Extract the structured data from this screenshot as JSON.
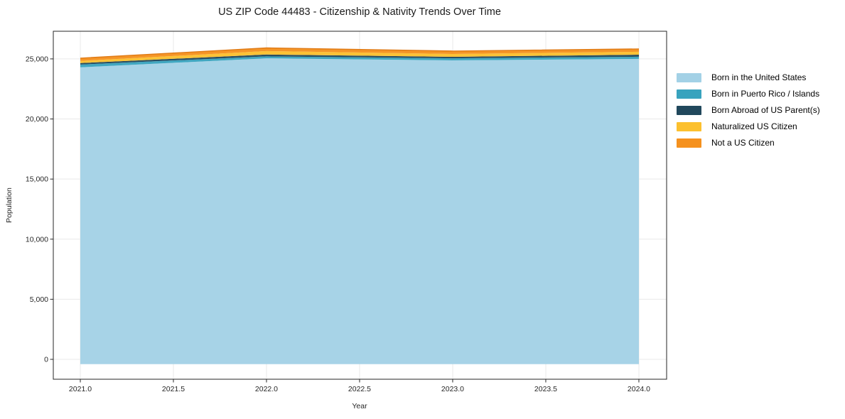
{
  "chart_data": {
    "type": "area",
    "stacked": true,
    "title": "US ZIP Code 44483 - Citizenship & Nativity Trends Over Time",
    "xlabel": "Year",
    "ylabel": "Population",
    "x": [
      2021,
      2022,
      2023,
      2024
    ],
    "series": [
      {
        "name": "Born in the United States",
        "color": "#A3D1E6",
        "values": [
          24300,
          25050,
          24880,
          25000
        ]
      },
      {
        "name": "Born in Puerto Rico / Islands",
        "color": "#38A3BE",
        "values": [
          230,
          160,
          170,
          180
        ]
      },
      {
        "name": "Born Abroad of US Parent(s)",
        "color": "#21485C",
        "values": [
          120,
          150,
          120,
          170
        ]
      },
      {
        "name": "Naturalized US Citizen",
        "color": "#FCC02E",
        "values": [
          180,
          290,
          240,
          240
        ]
      },
      {
        "name": "Not a US Citizen",
        "color": "#F5911E",
        "values": [
          230,
          260,
          240,
          240
        ]
      }
    ],
    "xlim": [
      2020.855,
      2024.149
    ],
    "ylim": [
      -1655,
      27300
    ],
    "xticks": {
      "values": [
        2021.0,
        2021.5,
        2022.0,
        2022.5,
        2023.0,
        2023.5,
        2024.0
      ],
      "labels": [
        "2021.0",
        "2021.5",
        "2022.0",
        "2022.5",
        "2023.0",
        "2023.5",
        "2024.0"
      ]
    },
    "yticks": {
      "values": [
        0,
        5000,
        10000,
        15000,
        20000,
        25000
      ],
      "labels": [
        "0",
        "5,000",
        "10,000",
        "15,000",
        "20,000",
        "25,000"
      ]
    },
    "grid": true,
    "legend_position": "right",
    "colors": {
      "grid": "#E9E9E9",
      "spine": "#262626",
      "tick_text": "#262626",
      "top_edge": "#E07B16"
    }
  }
}
